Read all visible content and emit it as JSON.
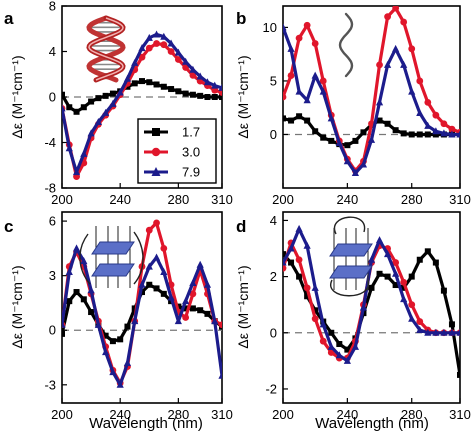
{
  "chart_data": [
    {
      "panel_label": "a",
      "type": "line",
      "ylabel": "Δε (M⁻¹cm⁻¹)",
      "xlim": [
        200,
        310
      ],
      "ylim": [
        -8,
        8
      ],
      "xticks": [
        "200",
        "240",
        "280",
        "310"
      ],
      "yticks": [
        "8",
        "4",
        "0",
        "-4",
        "-8"
      ],
      "legend": {
        "placement": "bottom-right",
        "entries": [
          "1.7",
          "3.0",
          "7.9"
        ]
      },
      "reference_line": 0,
      "x": [
        200,
        205,
        210,
        215,
        220,
        225,
        230,
        235,
        240,
        245,
        250,
        255,
        260,
        265,
        270,
        275,
        280,
        285,
        290,
        295,
        300,
        305,
        310
      ],
      "series": [
        {
          "name": "1.7",
          "color": "#000000",
          "marker": "square",
          "values": [
            0.2,
            -0.9,
            -1.3,
            -0.9,
            -0.4,
            -0.1,
            0.1,
            0.3,
            0.5,
            0.9,
            1.2,
            1.4,
            1.3,
            1.1,
            0.9,
            0.7,
            0.5,
            0.3,
            0.2,
            0.1,
            0,
            0,
            0
          ]
        },
        {
          "name": "3.0",
          "color": "#e0162b",
          "marker": "circle",
          "values": [
            -1.0,
            -4.2,
            -7.0,
            -5.8,
            -3.6,
            -2.4,
            -1.6,
            -0.8,
            0.2,
            1.2,
            2.4,
            3.5,
            4.3,
            4.7,
            4.6,
            4.0,
            3.3,
            2.6,
            1.9,
            1.4,
            1.0,
            0.6,
            0.4
          ]
        },
        {
          "name": "7.9",
          "color": "#1c1c8c",
          "marker": "triangle",
          "values": [
            -1.0,
            -4.5,
            -6.6,
            -5.0,
            -3.2,
            -2.2,
            -1.4,
            -0.6,
            0.4,
            1.6,
            3.0,
            4.3,
            5.2,
            5.5,
            5.3,
            4.7,
            3.9,
            3.1,
            2.4,
            1.8,
            1.3,
            1.0,
            0.8
          ]
        }
      ]
    },
    {
      "panel_label": "b",
      "type": "line",
      "ylabel": "Δε (M⁻¹cm⁻¹)",
      "xlim": [
        200,
        310
      ],
      "ylim": [
        -5,
        12
      ],
      "xticks": [
        "200",
        "240",
        "280",
        "310"
      ],
      "yticks": [
        "10",
        "5",
        "0"
      ],
      "reference_line": 0,
      "x": [
        200,
        205,
        210,
        215,
        220,
        225,
        230,
        235,
        240,
        245,
        250,
        255,
        260,
        265,
        270,
        275,
        280,
        285,
        290,
        295,
        300,
        305,
        310
      ],
      "series": [
        {
          "name": "1.7",
          "color": "#000000",
          "marker": "square",
          "values": [
            1.5,
            1.3,
            1.7,
            1.3,
            0.3,
            -0.3,
            -0.6,
            -0.9,
            -1.0,
            -0.6,
            0.2,
            0.9,
            1.3,
            1.0,
            0.4,
            0.1,
            0,
            0,
            0,
            0,
            0,
            0,
            0
          ]
        },
        {
          "name": "3.0",
          "color": "#e0162b",
          "marker": "circle",
          "values": [
            3.5,
            5.5,
            9.0,
            10.2,
            8.5,
            5.0,
            1.8,
            -0.6,
            -2.3,
            -3.4,
            -2.5,
            1.0,
            6.5,
            11.0,
            11.8,
            10.5,
            8.0,
            5.0,
            3.0,
            1.8,
            1.0,
            0.5,
            0.2
          ]
        },
        {
          "name": "7.9",
          "color": "#1c1c8c",
          "marker": "triangle",
          "values": [
            10.0,
            8.0,
            4.0,
            3.2,
            5.5,
            4.0,
            1.5,
            -0.8,
            -2.5,
            -3.6,
            -2.8,
            -0.5,
            3.0,
            6.5,
            8.0,
            6.5,
            4.0,
            2.0,
            0.8,
            0.3,
            0.1,
            0,
            0
          ]
        }
      ]
    },
    {
      "panel_label": "c",
      "type": "line",
      "ylabel": "Δε (M⁻¹cm⁻¹)",
      "xlim": [
        200,
        310
      ],
      "ylim": [
        -4,
        6.5
      ],
      "xticks": [
        "200",
        "240",
        "280",
        "310"
      ],
      "yticks": [
        "6",
        "3",
        "0",
        "-3"
      ],
      "reference_line": 0,
      "x": [
        200,
        205,
        210,
        215,
        220,
        225,
        230,
        235,
        240,
        245,
        250,
        255,
        260,
        265,
        270,
        275,
        280,
        285,
        290,
        295,
        300,
        305,
        310
      ],
      "series": [
        {
          "name": "1.7",
          "color": "#000000",
          "marker": "square",
          "values": [
            -0.2,
            1.6,
            2.1,
            1.7,
            1.0,
            0.3,
            -0.3,
            -0.6,
            -0.5,
            0.2,
            1.2,
            2.1,
            2.5,
            2.3,
            2.0,
            1.6,
            1.3,
            1.2,
            1.2,
            1.1,
            0.9,
            0.5,
            0.2
          ]
        },
        {
          "name": "3.0",
          "color": "#e0162b",
          "marker": "circle",
          "values": [
            0.3,
            3.5,
            4.3,
            3.5,
            2.0,
            0.5,
            -0.9,
            -2.2,
            -2.9,
            -2.0,
            0.5,
            3.5,
            5.5,
            5.9,
            4.5,
            2.5,
            1.0,
            0.7,
            2.0,
            3.3,
            2.0,
            0.5,
            0.3
          ]
        },
        {
          "name": "7.9",
          "color": "#1c1c8c",
          "marker": "triangle",
          "values": [
            0.3,
            3.2,
            4.5,
            3.8,
            2.2,
            0.3,
            -1.2,
            -2.3,
            -3.0,
            -1.8,
            0.5,
            2.5,
            3.5,
            4.0,
            3.2,
            1.8,
            0.5,
            1.6,
            2.6,
            3.6,
            2.5,
            0.5,
            -2.5
          ]
        }
      ]
    },
    {
      "panel_label": "d",
      "type": "line",
      "ylabel": "Δε (M⁻¹cm⁻¹)",
      "xlim": [
        200,
        310
      ],
      "ylim": [
        -2.5,
        4.3
      ],
      "xticks": [
        "200",
        "240",
        "280",
        "310"
      ],
      "yticks": [
        "4",
        "2",
        "0",
        "-2"
      ],
      "reference_line": 0,
      "x": [
        200,
        205,
        210,
        215,
        220,
        225,
        230,
        235,
        240,
        245,
        250,
        255,
        260,
        265,
        270,
        275,
        280,
        285,
        290,
        295,
        300,
        305,
        310
      ],
      "series": [
        {
          "name": "1.7",
          "color": "#000000",
          "marker": "square",
          "values": [
            2.8,
            2.5,
            2.0,
            1.3,
            0.8,
            0.4,
            0.0,
            -0.4,
            -0.6,
            -0.2,
            0.7,
            1.6,
            2.1,
            2.0,
            1.7,
            1.6,
            2.0,
            2.6,
            2.9,
            2.5,
            1.5,
            0.3,
            -1.5
          ]
        },
        {
          "name": "3.0",
          "color": "#e0162b",
          "marker": "circle",
          "values": [
            2.3,
            3.2,
            2.6,
            1.6,
            0.5,
            -0.3,
            -0.7,
            -0.9,
            -0.9,
            -0.3,
            1.0,
            2.5,
            3.1,
            3.0,
            2.5,
            1.8,
            1.0,
            0.4,
            0.1,
            0,
            0,
            0,
            0
          ]
        },
        {
          "name": "7.9",
          "color": "#1c1c8c",
          "marker": "triangle",
          "values": [
            2.5,
            3.0,
            3.7,
            3.1,
            1.6,
            0.3,
            -0.5,
            -0.8,
            -1.0,
            -0.5,
            0.9,
            2.6,
            3.3,
            2.8,
            2.1,
            1.2,
            0.5,
            0.1,
            0,
            0,
            0,
            0,
            0
          ]
        }
      ]
    }
  ],
  "figure": {
    "xlabel": "Wavelength (nm)"
  }
}
